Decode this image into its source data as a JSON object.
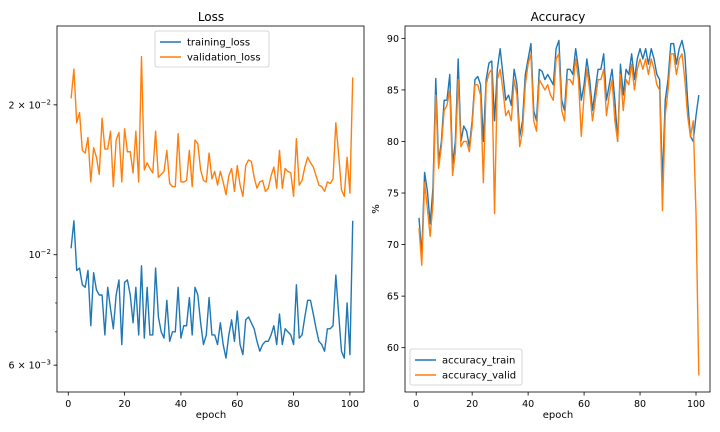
{
  "colors": {
    "train": "#1f77b4",
    "valid": "#ff7f0e"
  },
  "chart_data": [
    {
      "type": "line",
      "title": "Loss",
      "xlabel": "epoch",
      "ylabel": "",
      "yscale": "log",
      "xlim": [
        -4,
        105
      ],
      "ylim": [
        0.0053,
        0.0288
      ],
      "xticks": [
        0,
        20,
        40,
        60,
        80,
        100
      ],
      "yticks": [
        {
          "value": 0.006,
          "base": "6",
          "exp": "−3"
        },
        {
          "value": 0.01,
          "base": "10",
          "exp": "−2"
        },
        {
          "value": 0.02,
          "base": "2",
          "exp": "−2"
        }
      ],
      "legend": "upper center",
      "grid": false,
      "x_start": 1,
      "series": [
        {
          "name": "training_loss",
          "color": "#1f77b4",
          "values": [
            0.0103,
            0.0117,
            0.0093,
            0.0094,
            0.0087,
            0.0086,
            0.0093,
            0.0072,
            0.0092,
            0.0085,
            0.0083,
            0.0083,
            0.0069,
            0.0086,
            0.0078,
            0.0071,
            0.0083,
            0.0089,
            0.0066,
            0.0088,
            0.0089,
            0.0083,
            0.0073,
            0.0086,
            0.0069,
            0.0095,
            0.0068,
            0.0086,
            0.0069,
            0.0069,
            0.0094,
            0.0075,
            0.007,
            0.0068,
            0.0081,
            0.0067,
            0.007,
            0.007,
            0.0086,
            0.0068,
            0.0072,
            0.0072,
            0.0082,
            0.0069,
            0.0086,
            0.0083,
            0.0073,
            0.0066,
            0.0069,
            0.0082,
            0.0069,
            0.0069,
            0.0066,
            0.0073,
            0.0066,
            0.0062,
            0.0069,
            0.0074,
            0.0067,
            0.0077,
            0.0066,
            0.0063,
            0.0074,
            0.0075,
            0.0073,
            0.0071,
            0.0067,
            0.0064,
            0.0066,
            0.0067,
            0.0067,
            0.0069,
            0.0072,
            0.0066,
            0.0076,
            0.0066,
            0.0071,
            0.007,
            0.0069,
            0.0066,
            0.0087,
            0.0068,
            0.0069,
            0.0075,
            0.0081,
            0.0081,
            0.0076,
            0.0071,
            0.0067,
            0.0066,
            0.0064,
            0.0071,
            0.0071,
            0.0072,
            0.0091,
            0.0076,
            0.0064,
            0.0062,
            0.008,
            0.0063,
            0.0117
          ]
        },
        {
          "name": "validation_loss",
          "color": "#ff7f0e",
          "values": [
            0.0206,
            0.0236,
            0.0184,
            0.0193,
            0.0162,
            0.016,
            0.0172,
            0.014,
            0.0164,
            0.0157,
            0.0145,
            0.0188,
            0.0163,
            0.0163,
            0.0177,
            0.0137,
            0.017,
            0.0176,
            0.014,
            0.0179,
            0.0161,
            0.0161,
            0.0146,
            0.0177,
            0.014,
            0.025,
            0.0148,
            0.0153,
            0.0149,
            0.0146,
            0.0177,
            0.0143,
            0.0145,
            0.0147,
            0.0162,
            0.0139,
            0.0137,
            0.0137,
            0.0175,
            0.014,
            0.014,
            0.0141,
            0.0162,
            0.0137,
            0.017,
            0.0167,
            0.0148,
            0.0141,
            0.014,
            0.016,
            0.0142,
            0.0147,
            0.0138,
            0.0147,
            0.014,
            0.0132,
            0.0144,
            0.0149,
            0.0134,
            0.0151,
            0.0138,
            0.0131,
            0.0151,
            0.0155,
            0.0154,
            0.0143,
            0.0136,
            0.014,
            0.0141,
            0.0134,
            0.0136,
            0.0144,
            0.015,
            0.0136,
            0.0162,
            0.0136,
            0.0149,
            0.0147,
            0.0146,
            0.0131,
            0.0171,
            0.0138,
            0.0141,
            0.015,
            0.0157,
            0.0153,
            0.015,
            0.0144,
            0.0138,
            0.0137,
            0.0134,
            0.014,
            0.0139,
            0.0142,
            0.0184,
            0.0159,
            0.0135,
            0.0131,
            0.0157,
            0.0133,
            0.0227
          ]
        }
      ]
    },
    {
      "type": "line",
      "title": "Accuracy",
      "xlabel": "epoch",
      "ylabel": "%",
      "xlim": [
        -4,
        105
      ],
      "ylim": [
        55.7,
        91.2
      ],
      "xticks": [
        0,
        20,
        40,
        60,
        80,
        100
      ],
      "yticks": [
        60,
        65,
        70,
        75,
        80,
        85,
        90
      ],
      "legend": "lower left",
      "grid": false,
      "x_start": 1,
      "series": [
        {
          "name": "accuracy_train",
          "color": "#1f77b4",
          "values": [
            72.6,
            69.0,
            77.0,
            75.2,
            72.0,
            75.5,
            86.1,
            78.0,
            80.0,
            84.0,
            84.0,
            86.5,
            77.8,
            80.0,
            88.0,
            80.0,
            81.5,
            81.0,
            79.5,
            82.0,
            86.0,
            86.3,
            85.5,
            80.0,
            86.0,
            87.6,
            87.8,
            82.0,
            87.0,
            89.0,
            86.5,
            84.0,
            84.5,
            83.5,
            87.0,
            85.5,
            80.5,
            82.0,
            86.5,
            88.0,
            89.5,
            83.0,
            82.0,
            87.0,
            86.8,
            86.0,
            86.5,
            86.0,
            85.5,
            89.0,
            89.8,
            84.0,
            83.0,
            87.0,
            87.0,
            86.5,
            89.0,
            87.0,
            84.0,
            85.5,
            88.0,
            86.0,
            83.0,
            85.0,
            87.0,
            87.0,
            88.5,
            84.0,
            85.5,
            87.0,
            84.0,
            80.0,
            87.5,
            84.5,
            87.0,
            86.5,
            88.5,
            86.0,
            88.0,
            89.0,
            88.0,
            89.0,
            87.5,
            89.0,
            88.0,
            86.5,
            86.0,
            76.0,
            84.0,
            86.0,
            89.5,
            89.5,
            87.5,
            89.0,
            89.8,
            88.5,
            84.0,
            80.5,
            80.0,
            82.5,
            84.5
          ]
        },
        {
          "name": "accuracy_valid",
          "color": "#ff7f0e",
          "values": [
            71.6,
            68.0,
            76.0,
            73.5,
            70.8,
            74.0,
            84.5,
            77.4,
            79.5,
            83.0,
            83.5,
            85.0,
            76.7,
            79.0,
            86.0,
            79.5,
            80.0,
            80.0,
            79.0,
            81.5,
            85.5,
            85.5,
            84.5,
            76.0,
            85.5,
            86.6,
            87.0,
            73.0,
            86.0,
            87.0,
            85.0,
            82.5,
            83.0,
            82.0,
            86.0,
            84.5,
            79.5,
            81.0,
            85.5,
            87.5,
            88.5,
            82.0,
            81.0,
            86.0,
            85.5,
            85.0,
            85.5,
            84.5,
            84.0,
            88.0,
            88.5,
            83.0,
            82.0,
            86.0,
            86.0,
            85.5,
            88.0,
            86.0,
            80.5,
            84.5,
            87.0,
            85.0,
            82.0,
            84.0,
            86.0,
            86.0,
            87.0,
            82.5,
            84.5,
            86.0,
            82.0,
            80.0,
            86.5,
            83.0,
            86.0,
            85.5,
            87.5,
            85.0,
            87.0,
            88.0,
            87.0,
            88.0,
            86.5,
            88.0,
            87.0,
            85.5,
            85.0,
            73.3,
            82.5,
            85.0,
            88.5,
            88.5,
            86.5,
            88.0,
            88.5,
            86.0,
            82.5,
            80.5,
            82.0,
            73.0,
            57.3
          ]
        }
      ]
    }
  ]
}
